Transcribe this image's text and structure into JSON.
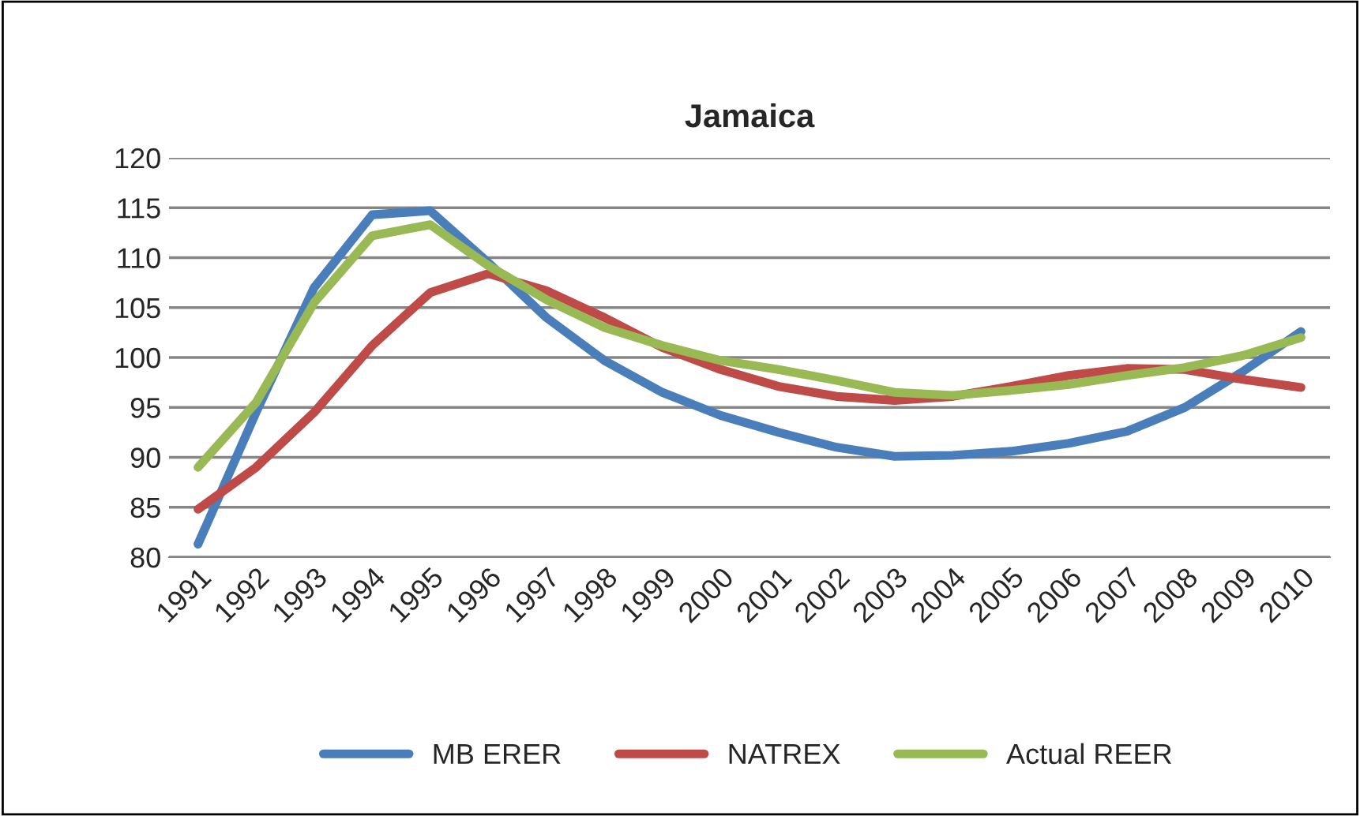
{
  "chart_data": {
    "type": "line",
    "title": "Jamaica",
    "categories": [
      "1991",
      "1992",
      "1993",
      "1994",
      "1995",
      "1996",
      "1997",
      "1998",
      "1999",
      "2000",
      "2001",
      "2002",
      "2003",
      "2004",
      "2005",
      "2006",
      "2007",
      "2008",
      "2009",
      "2010"
    ],
    "series": [
      {
        "name": "MB ERER",
        "color": "#4a7ebb",
        "values": [
          81.3,
          94.5,
          107,
          114.3,
          114.7,
          109.5,
          104,
          99.7,
          96.5,
          94.2,
          92.5,
          91,
          90.1,
          90.2,
          90.6,
          91.4,
          92.6,
          95,
          98.6,
          102.6
        ]
      },
      {
        "name": "NATREX",
        "color": "#be4b48",
        "values": [
          84.8,
          89,
          94.5,
          101.2,
          106.5,
          108.4,
          106.7,
          104,
          101,
          98.8,
          97.1,
          96.1,
          95.7,
          96.1,
          97.1,
          98.2,
          98.9,
          98.8,
          97.8,
          97
        ]
      },
      {
        "name": "Actual REER",
        "color": "#98b954",
        "values": [
          89,
          95.5,
          105.5,
          112.2,
          113.3,
          109.2,
          105.8,
          103,
          101.2,
          99.7,
          98.8,
          97.7,
          96.5,
          96.2,
          96.7,
          97.3,
          98.2,
          99,
          100.2,
          102
        ]
      }
    ],
    "ylim": [
      80,
      120
    ],
    "yticks": [
      80,
      85,
      90,
      95,
      100,
      105,
      110,
      115,
      120
    ],
    "grid": "y",
    "legend": "bottom",
    "marker": "none",
    "line_style": "solid"
  }
}
